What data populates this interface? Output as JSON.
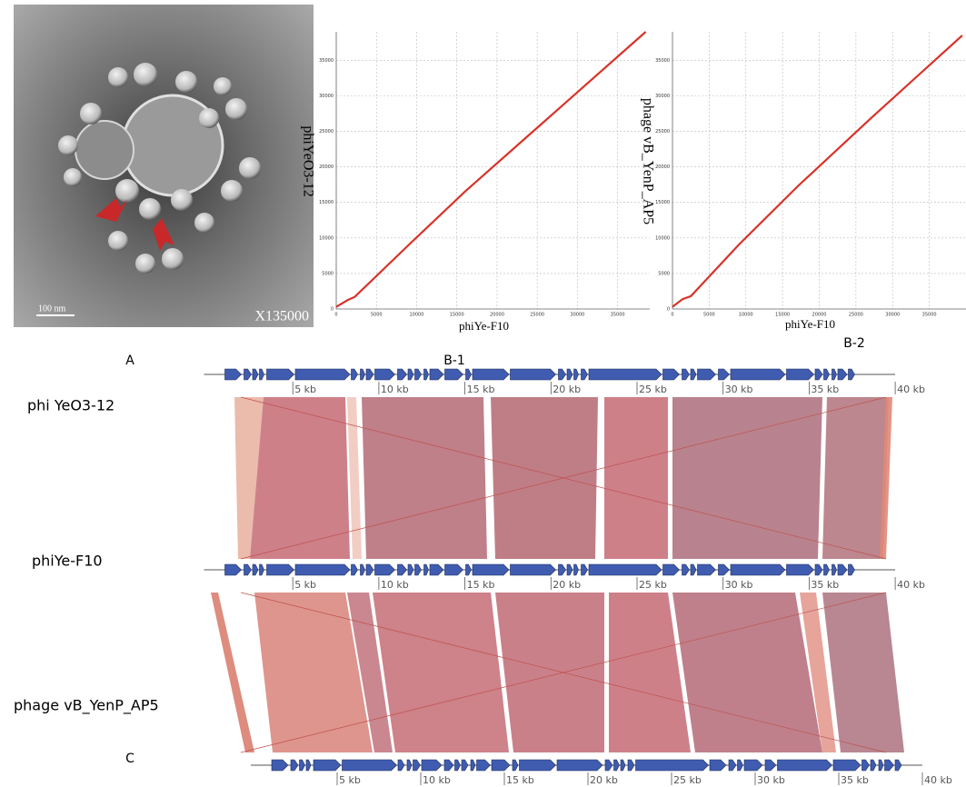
{
  "panel_a": {
    "label": "A",
    "scale_bar": "100 nm",
    "magnification": "X135000"
  },
  "dotplots": [
    {
      "label": "B-1",
      "y_label": "phiYeO3-12",
      "x_label": "phiYe-F10",
      "xlim": [
        0,
        39000
      ],
      "ylim": [
        0,
        39000
      ],
      "xticks": [
        0,
        5000,
        10000,
        15000,
        20000,
        25000,
        30000,
        35000
      ],
      "yticks": [
        0,
        5000,
        10000,
        15000,
        20000,
        25000,
        30000,
        35000
      ],
      "color": "#d8322a",
      "x": [
        0,
        1500,
        2300,
        9000,
        16000,
        26000,
        38500
      ],
      "y": [
        300,
        1300,
        1700,
        9000,
        16500,
        26500,
        39000
      ]
    },
    {
      "label": "B-2",
      "y_label": "phage vB_YenP_AP5",
      "x_label": "phiYe-F10",
      "xlim": [
        0,
        40000
      ],
      "ylim": [
        0,
        39000
      ],
      "xticks": [
        0,
        5000,
        10000,
        15000,
        20000,
        25000,
        30000,
        35000
      ],
      "yticks": [
        0,
        5000,
        10000,
        15000,
        20000,
        25000,
        30000,
        35000
      ],
      "color": "#d8322a",
      "x": [
        0,
        1400,
        2500,
        9000,
        17000,
        27000,
        39500
      ],
      "y": [
        300,
        1400,
        1800,
        9000,
        17200,
        26800,
        38500
      ]
    }
  ],
  "comparison": {
    "label": "C",
    "genomes": [
      {
        "name": "phi YeO3-12",
        "xlim": [
          0,
          40
        ],
        "ticks": [
          {
            "value": 5,
            "label": "5 kb"
          },
          {
            "value": 10,
            "label": "10 kb"
          },
          {
            "value": 15,
            "label": "15 kb"
          },
          {
            "value": 20,
            "label": "20 kb"
          },
          {
            "value": 25,
            "label": "25 kb"
          },
          {
            "value": 30,
            "label": "30 kb"
          },
          {
            "value": 35,
            "label": "35 kb"
          },
          {
            "value": 40,
            "label": "40 kb"
          }
        ]
      },
      {
        "name": "phiYe-F10",
        "xlim": [
          0,
          40
        ],
        "ticks": [
          {
            "value": 5,
            "label": "5 kb"
          },
          {
            "value": 10,
            "label": "10 kb"
          },
          {
            "value": 15,
            "label": "15 kb"
          },
          {
            "value": 20,
            "label": "20 kb"
          },
          {
            "value": 25,
            "label": "25 kb"
          },
          {
            "value": 30,
            "label": "30 kb"
          },
          {
            "value": 35,
            "label": "35 kb"
          },
          {
            "value": 40,
            "label": "40 kb"
          }
        ]
      },
      {
        "name": "phage vB_YenP_AP5",
        "xlim": [
          0,
          40
        ],
        "ticks": [
          {
            "value": 5,
            "label": "5 kb"
          },
          {
            "value": 10,
            "label": "10 kb"
          },
          {
            "value": 15,
            "label": "15 kb"
          },
          {
            "value": 20,
            "label": "20 kb"
          },
          {
            "value": 25,
            "label": "25 kb"
          },
          {
            "value": 30,
            "label": "30 kb"
          },
          {
            "value": 35,
            "label": "35 kb"
          },
          {
            "value": 40,
            "label": "40 kb"
          }
        ]
      }
    ]
  }
}
